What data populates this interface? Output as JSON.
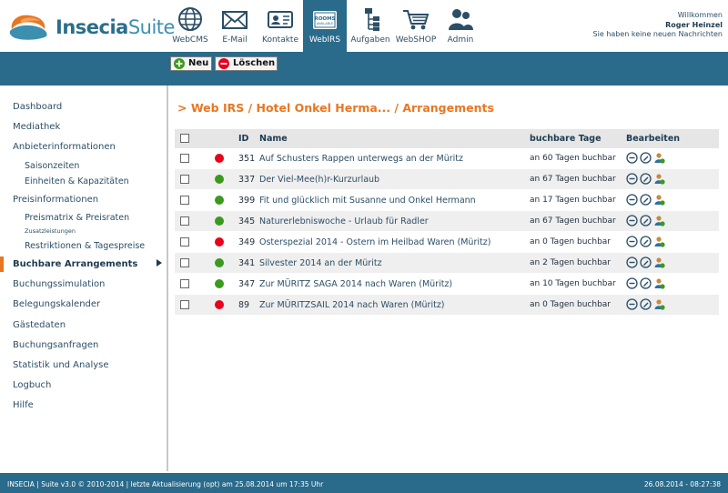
{
  "app": {
    "logo_left": "Insecia",
    "logo_right": "Suite"
  },
  "nav": [
    {
      "label": "WebCMS",
      "icon": "globe-icon"
    },
    {
      "label": "E-Mail",
      "icon": "envelope-icon"
    },
    {
      "label": "Kontakte",
      "icon": "contact-card-icon"
    },
    {
      "label": "WebIRS",
      "icon": "rooms-available-icon",
      "badge": "ROOMS AVAILABLE"
    },
    {
      "label": "Aufgaben",
      "icon": "task-tree-icon"
    },
    {
      "label": "WebSHOP",
      "icon": "shopping-cart-icon"
    },
    {
      "label": "Admin",
      "icon": "users-icon"
    }
  ],
  "welcome": {
    "line1": "Willkommen",
    "name": "Roger Heinzel",
    "line3": "Sie haben keine neuen Nachrichten"
  },
  "toolbar": {
    "new_label": "Neu",
    "delete_label": "Löschen"
  },
  "sidebar": {
    "items": [
      "Dashboard",
      "Mediathek",
      "Anbieterinformationen",
      "Saisonzeiten",
      "Einheiten & Kapazitäten",
      "Preisinformationen",
      "Preismatrix & Preisraten",
      "Zusatzleistungen",
      "Restriktionen & Tagespreise",
      "Buchbare Arrangements",
      "Buchungssimulation",
      "Belegungskalender",
      "Gästedaten",
      "Buchungsanfragen",
      "Statistik und Analyse",
      "Logbuch",
      "Hilfe"
    ]
  },
  "breadcrumb": "> Web IRS / Hotel Onkel Herma... / Arrangements",
  "table": {
    "headers": {
      "id": "ID",
      "name": "Name",
      "days": "buchbare Tage",
      "edit": "Bearbeiten"
    },
    "rows": [
      {
        "status": "red",
        "id": "351",
        "name": "Auf Schusters Rappen unterwegs an der Müritz",
        "days": "an 60 Tagen buchbar"
      },
      {
        "status": "green",
        "id": "337",
        "name": "Der Viel-Mee(h)r-Kurzurlaub",
        "days": "an 67 Tagen buchbar"
      },
      {
        "status": "green",
        "id": "399",
        "name": "Fit und glücklich mit Susanne und Onkel Hermann",
        "days": "an 17 Tagen buchbar"
      },
      {
        "status": "green",
        "id": "345",
        "name": "Naturerlebniswoche - Urlaub für Radler",
        "days": "an 67 Tagen buchbar"
      },
      {
        "status": "red",
        "id": "349",
        "name": "Osterspezial 2014 - Ostern im Heilbad Waren (Müritz)",
        "days": "an 0 Tagen buchbar"
      },
      {
        "status": "green",
        "id": "341",
        "name": "Silvester 2014 an der Müritz",
        "days": "an 2 Tagen buchbar"
      },
      {
        "status": "green",
        "id": "347",
        "name": "Zur MÜRITZ SAGA 2014 nach Waren (Müritz)",
        "days": "an 10 Tagen buchbar"
      },
      {
        "status": "red",
        "id": "89",
        "name": "Zur MÜRITZSAIL 2014 nach Waren (Müritz)",
        "days": "an 0 Tagen buchbar"
      }
    ]
  },
  "footer": {
    "left": "INSECIA | Suite v3.0 © 2010-2014 | letzte Aktualisierung (opt) am 25.08.2014 um 17:35 Uhr",
    "right": "26.08.2014 - 08:27:38"
  },
  "colors": {
    "brand": "#2a6a8a",
    "accent": "#e87722",
    "status_red": "#e8001c",
    "status_green": "#3a9a1e"
  }
}
